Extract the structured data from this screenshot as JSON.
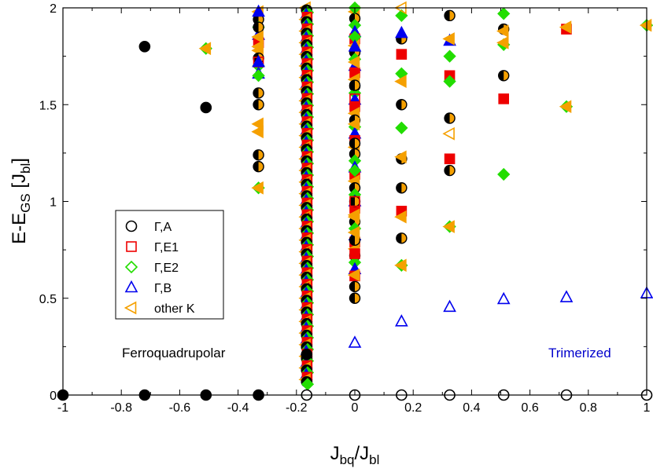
{
  "chart_data": {
    "type": "scatter",
    "title": "",
    "xlabel": {
      "main": "J",
      "sub1": "bq",
      "mid": "/J",
      "sub2": "bl"
    },
    "ylabel": {
      "pre": "E-E",
      "sub1": "GS",
      "mid": " [J",
      "sub2": "bl",
      "post": "]"
    },
    "xlim": [
      -1,
      1
    ],
    "ylim": [
      0,
      2
    ],
    "xticks": [
      {
        "v": -1,
        "label": "-1"
      },
      {
        "v": -0.8,
        "label": "-0.8"
      },
      {
        "v": -0.6,
        "label": "-0.6"
      },
      {
        "v": -0.4,
        "label": "-0.4"
      },
      {
        "v": -0.2,
        "label": "-0.2"
      },
      {
        "v": 0,
        "label": "0"
      },
      {
        "v": 0.2,
        "label": "0.2"
      },
      {
        "v": 0.4,
        "label": "0.4"
      },
      {
        "v": 0.6,
        "label": "0.6"
      },
      {
        "v": 0.8,
        "label": "0.8"
      },
      {
        "v": 1,
        "label": "1"
      }
    ],
    "yticks": [
      {
        "v": 0,
        "label": "0"
      },
      {
        "v": 0.5,
        "label": "0.5"
      },
      {
        "v": 1,
        "label": "1"
      },
      {
        "v": 1.5,
        "label": "1.5"
      },
      {
        "v": 2,
        "label": "2"
      }
    ],
    "legend": {
      "position": "center-left",
      "entries": [
        {
          "label": "Γ,A",
          "marker": "circle",
          "color": "#000000"
        },
        {
          "label": "Γ,E1",
          "marker": "square",
          "color": "#ee0000"
        },
        {
          "label": "Γ,E2",
          "marker": "diamond",
          "color": "#22dd00"
        },
        {
          "label": "Γ,B",
          "marker": "triangle-up",
          "color": "#0000ee"
        },
        {
          "label": "other K",
          "marker": "triangle-left",
          "color": "#f5a000"
        }
      ]
    },
    "annotations": [
      {
        "text": "Ferroquadrupolar",
        "x": -0.735,
        "y": 0.22,
        "color": "#000000"
      },
      {
        "text": "Trimerized",
        "x": 0.73,
        "y": 0.22,
        "color": "#0000cc"
      }
    ],
    "x_columns": [
      -1,
      -0.72,
      -0.51,
      -0.33,
      -0.165,
      0,
      0.16,
      0.325,
      0.51,
      0.725,
      1
    ],
    "ground_state": {
      "x": [
        -1,
        -0.72,
        -0.51,
        -0.33,
        -0.165,
        0,
        0.16,
        0.325,
        0.51,
        0.725,
        1
      ],
      "y": [
        0,
        0,
        0,
        0,
        0,
        0,
        0,
        0,
        0,
        0,
        0
      ],
      "filled": [
        true,
        true,
        true,
        true,
        false,
        false,
        false,
        false,
        false,
        false,
        false
      ]
    },
    "series": [
      {
        "name": "Γ,A",
        "filled_points": [
          [
            -0.72,
            1.8
          ],
          [
            -0.51,
            1.485
          ],
          [
            -0.165,
            0.21
          ],
          [
            -0.33,
            1.56
          ],
          [
            -0.33,
            1.5
          ],
          [
            -0.33,
            1.24
          ],
          [
            -0.33,
            1.18
          ],
          [
            -0.33,
            1.9
          ],
          [
            0,
            0.56
          ],
          [
            0,
            0.5
          ],
          [
            0,
            0.8
          ],
          [
            0,
            1.0
          ],
          [
            0,
            1.3
          ],
          [
            0,
            1.6
          ],
          [
            0.16,
            0.81
          ],
          [
            0.16,
            1.07
          ],
          [
            0.16,
            1.22
          ],
          [
            0.16,
            1.5
          ],
          [
            0.16,
            1.84
          ],
          [
            0.325,
            1.16
          ],
          [
            0.325,
            1.43
          ],
          [
            0.325,
            1.96
          ],
          [
            0.51,
            1.65
          ],
          [
            0.51,
            1.89
          ]
        ]
      },
      {
        "name": "Γ,E1",
        "points": [
          [
            -0.33,
            1.72
          ],
          [
            0,
            1.0
          ],
          [
            0,
            1.53
          ],
          [
            0,
            0.73
          ],
          [
            0.16,
            1.76
          ],
          [
            0.16,
            0.95
          ],
          [
            0.325,
            1.65
          ],
          [
            0.325,
            1.22
          ],
          [
            0.51,
            1.53
          ],
          [
            0.725,
            1.89
          ]
        ]
      },
      {
        "name": "Γ,E2",
        "points": [
          [
            -0.51,
            1.79
          ],
          [
            -0.33,
            1.65
          ],
          [
            -0.33,
            1.07
          ],
          [
            0,
            2.0
          ],
          [
            0,
            1.85
          ],
          [
            0,
            1.16
          ],
          [
            0.16,
            1.96
          ],
          [
            0.16,
            1.66
          ],
          [
            0.16,
            1.38
          ],
          [
            0.16,
            0.67
          ],
          [
            0.325,
            1.75
          ],
          [
            0.325,
            1.62
          ],
          [
            0.325,
            0.87
          ],
          [
            0.51,
            1.97
          ],
          [
            0.51,
            1.81
          ],
          [
            0.51,
            1.14
          ],
          [
            0.725,
            1.49
          ],
          [
            1,
            1.91
          ]
        ]
      },
      {
        "name": "Γ,B",
        "points": [
          [
            0,
            0.27
          ],
          [
            0.16,
            0.38
          ],
          [
            0.325,
            0.455
          ],
          [
            0.51,
            0.495
          ],
          [
            0.725,
            0.505
          ],
          [
            1,
            0.525
          ],
          [
            -0.33,
            1.98
          ],
          [
            -0.33,
            1.72
          ],
          [
            0,
            1.8
          ],
          [
            0.16,
            1.87
          ],
          [
            0.325,
            1.83
          ]
        ]
      },
      {
        "name": "other K",
        "points": [
          [
            -0.51,
            1.79
          ],
          [
            -0.33,
            1.4
          ],
          [
            -0.33,
            1.36
          ],
          [
            -0.33,
            1.07
          ],
          [
            -0.33,
            1.8
          ],
          [
            -0.33,
            1.85
          ],
          [
            0,
            0.62
          ],
          [
            0,
            0.84
          ],
          [
            0,
            0.92
          ],
          [
            0,
            1.4
          ],
          [
            0,
            1.72
          ],
          [
            0.16,
            0.67
          ],
          [
            0.16,
            0.92
          ],
          [
            0.16,
            1.23
          ],
          [
            0.16,
            1.62
          ],
          [
            0.16,
            2.0
          ],
          [
            0.325,
            1.35
          ],
          [
            0.325,
            0.87
          ],
          [
            0.325,
            1.84
          ],
          [
            0.51,
            1.82
          ],
          [
            0.51,
            1.88
          ],
          [
            0.725,
            1.9
          ],
          [
            0.725,
            1.49
          ],
          [
            1,
            1.91
          ]
        ]
      },
      {
        "name": "dense column",
        "x": -0.165,
        "y_range": [
          0.05,
          2.0
        ]
      }
    ]
  }
}
